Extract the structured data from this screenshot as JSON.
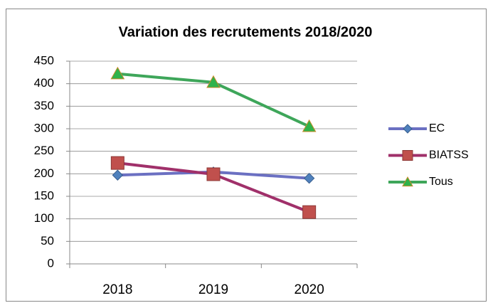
{
  "chart_data": {
    "type": "line",
    "title": "Variation des recrutements 2018/2020",
    "categories": [
      "2018",
      "2019",
      "2020"
    ],
    "series": [
      {
        "name": "EC",
        "color": "#6b70c2",
        "marker": "diamond",
        "marker_color": "#4f81bd",
        "values": [
          197,
          204,
          190
        ]
      },
      {
        "name": "BIATSS",
        "color": "#a0306a",
        "marker": "square",
        "marker_color": "#c0504d",
        "values": [
          224,
          199,
          115
        ]
      },
      {
        "name": "Tous",
        "color": "#3ea65a",
        "marker": "triangle",
        "marker_color": "#2fb24a",
        "values": [
          422,
          403,
          305
        ]
      }
    ],
    "ylim": [
      0,
      450
    ],
    "yticks": [
      0,
      50,
      100,
      150,
      200,
      250,
      300,
      350,
      400,
      450
    ],
    "grid": true,
    "legend": "right"
  }
}
